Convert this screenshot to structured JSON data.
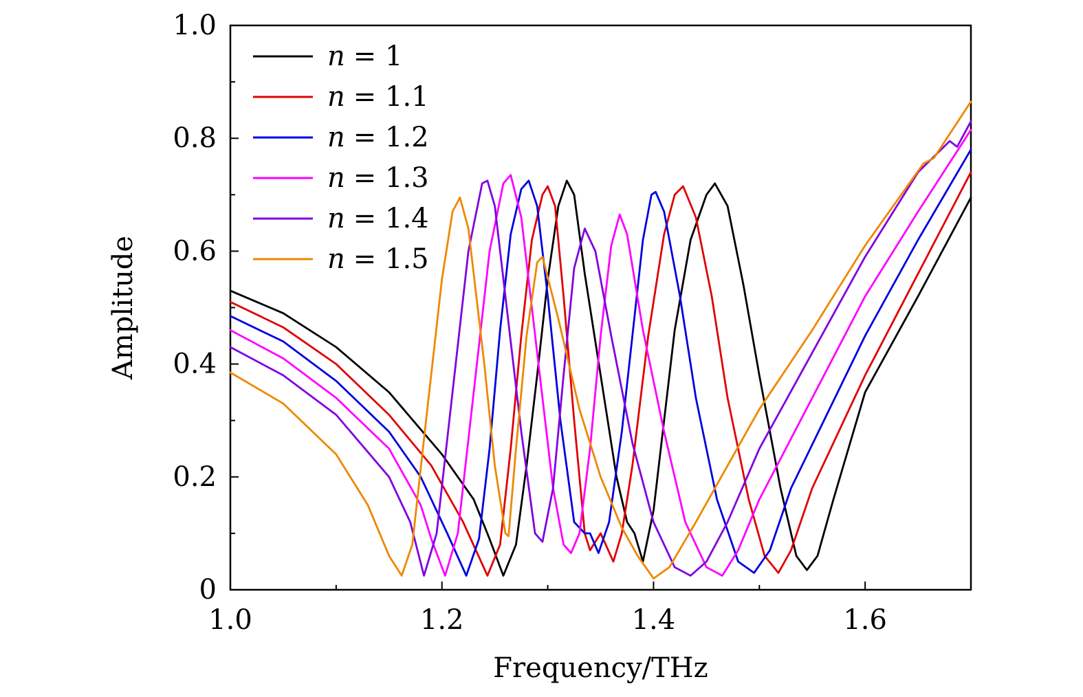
{
  "chart_data": {
    "type": "line",
    "title": "",
    "xlabel": "Frequency/THz",
    "ylabel": "Amplitude",
    "xlim": [
      1.0,
      1.7
    ],
    "ylim": [
      0,
      1.0
    ],
    "x_ticks": [
      {
        "value": 1.0,
        "label": "1.0"
      },
      {
        "value": 1.2,
        "label": "1.2"
      },
      {
        "value": 1.4,
        "label": "1.4"
      },
      {
        "value": 1.6,
        "label": "1.6"
      }
    ],
    "y_ticks": [
      {
        "value": 0,
        "label": "0"
      },
      {
        "value": 0.2,
        "label": "0.2"
      },
      {
        "value": 0.4,
        "label": "0.4"
      },
      {
        "value": 0.6,
        "label": "0.6"
      },
      {
        "value": 0.8,
        "label": "0.8"
      },
      {
        "value": 1.0,
        "label": "1.0"
      }
    ],
    "grid": false,
    "legend_position": "top-left",
    "series": [
      {
        "name": "n = 1",
        "legend_var": "n",
        "legend_value": "= 1",
        "color": "#000000",
        "points": [
          [
            1.0,
            0.53
          ],
          [
            1.05,
            0.49
          ],
          [
            1.1,
            0.43
          ],
          [
            1.15,
            0.35
          ],
          [
            1.2,
            0.24
          ],
          [
            1.23,
            0.16
          ],
          [
            1.245,
            0.09
          ],
          [
            1.258,
            0.025
          ],
          [
            1.27,
            0.08
          ],
          [
            1.28,
            0.22
          ],
          [
            1.29,
            0.38
          ],
          [
            1.3,
            0.55
          ],
          [
            1.31,
            0.68
          ],
          [
            1.318,
            0.725
          ],
          [
            1.325,
            0.7
          ],
          [
            1.335,
            0.56
          ],
          [
            1.35,
            0.38
          ],
          [
            1.365,
            0.2
          ],
          [
            1.375,
            0.12
          ],
          [
            1.382,
            0.1
          ],
          [
            1.39,
            0.05
          ],
          [
            1.4,
            0.14
          ],
          [
            1.41,
            0.3
          ],
          [
            1.42,
            0.46
          ],
          [
            1.435,
            0.62
          ],
          [
            1.45,
            0.7
          ],
          [
            1.458,
            0.72
          ],
          [
            1.47,
            0.68
          ],
          [
            1.485,
            0.54
          ],
          [
            1.5,
            0.38
          ],
          [
            1.52,
            0.18
          ],
          [
            1.535,
            0.06
          ],
          [
            1.545,
            0.035
          ],
          [
            1.555,
            0.06
          ],
          [
            1.57,
            0.16
          ],
          [
            1.6,
            0.35
          ],
          [
            1.65,
            0.52
          ],
          [
            1.7,
            0.695
          ]
        ]
      },
      {
        "name": "n = 1.1",
        "legend_var": "n",
        "legend_value": "= 1.1",
        "color": "#e00000",
        "points": [
          [
            1.0,
            0.51
          ],
          [
            1.05,
            0.465
          ],
          [
            1.1,
            0.4
          ],
          [
            1.15,
            0.31
          ],
          [
            1.19,
            0.22
          ],
          [
            1.22,
            0.12
          ],
          [
            1.243,
            0.025
          ],
          [
            1.255,
            0.08
          ],
          [
            1.265,
            0.25
          ],
          [
            1.275,
            0.45
          ],
          [
            1.285,
            0.62
          ],
          [
            1.295,
            0.7
          ],
          [
            1.3,
            0.715
          ],
          [
            1.307,
            0.68
          ],
          [
            1.315,
            0.52
          ],
          [
            1.325,
            0.3
          ],
          [
            1.335,
            0.1
          ],
          [
            1.34,
            0.07
          ],
          [
            1.35,
            0.1
          ],
          [
            1.362,
            0.05
          ],
          [
            1.37,
            0.1
          ],
          [
            1.38,
            0.22
          ],
          [
            1.395,
            0.45
          ],
          [
            1.41,
            0.63
          ],
          [
            1.42,
            0.7
          ],
          [
            1.428,
            0.715
          ],
          [
            1.44,
            0.66
          ],
          [
            1.455,
            0.52
          ],
          [
            1.47,
            0.34
          ],
          [
            1.49,
            0.16
          ],
          [
            1.505,
            0.06
          ],
          [
            1.518,
            0.03
          ],
          [
            1.53,
            0.07
          ],
          [
            1.55,
            0.18
          ],
          [
            1.6,
            0.38
          ],
          [
            1.65,
            0.56
          ],
          [
            1.7,
            0.74
          ]
        ]
      },
      {
        "name": "n = 1.2",
        "legend_var": "n",
        "legend_value": "= 1.2",
        "color": "#0000e0",
        "points": [
          [
            1.0,
            0.485
          ],
          [
            1.05,
            0.44
          ],
          [
            1.1,
            0.37
          ],
          [
            1.15,
            0.28
          ],
          [
            1.18,
            0.2
          ],
          [
            1.205,
            0.1
          ],
          [
            1.223,
            0.025
          ],
          [
            1.235,
            0.09
          ],
          [
            1.245,
            0.25
          ],
          [
            1.255,
            0.46
          ],
          [
            1.265,
            0.63
          ],
          [
            1.275,
            0.71
          ],
          [
            1.282,
            0.725
          ],
          [
            1.29,
            0.68
          ],
          [
            1.3,
            0.52
          ],
          [
            1.312,
            0.3
          ],
          [
            1.325,
            0.12
          ],
          [
            1.335,
            0.1
          ],
          [
            1.34,
            0.1
          ],
          [
            1.348,
            0.065
          ],
          [
            1.358,
            0.12
          ],
          [
            1.37,
            0.28
          ],
          [
            1.38,
            0.45
          ],
          [
            1.39,
            0.62
          ],
          [
            1.398,
            0.7
          ],
          [
            1.402,
            0.705
          ],
          [
            1.41,
            0.67
          ],
          [
            1.425,
            0.52
          ],
          [
            1.44,
            0.34
          ],
          [
            1.46,
            0.16
          ],
          [
            1.48,
            0.05
          ],
          [
            1.495,
            0.03
          ],
          [
            1.51,
            0.07
          ],
          [
            1.53,
            0.18
          ],
          [
            1.6,
            0.45
          ],
          [
            1.65,
            0.62
          ],
          [
            1.7,
            0.78
          ]
        ]
      },
      {
        "name": "n = 1.3",
        "legend_var": "n",
        "legend_value": "= 1.3",
        "color": "#ff00ff",
        "points": [
          [
            1.0,
            0.46
          ],
          [
            1.05,
            0.41
          ],
          [
            1.1,
            0.34
          ],
          [
            1.15,
            0.25
          ],
          [
            1.18,
            0.15
          ],
          [
            1.19,
            0.09
          ],
          [
            1.203,
            0.025
          ],
          [
            1.215,
            0.1
          ],
          [
            1.23,
            0.35
          ],
          [
            1.245,
            0.6
          ],
          [
            1.258,
            0.72
          ],
          [
            1.265,
            0.735
          ],
          [
            1.275,
            0.66
          ],
          [
            1.29,
            0.42
          ],
          [
            1.305,
            0.18
          ],
          [
            1.315,
            0.08
          ],
          [
            1.322,
            0.065
          ],
          [
            1.33,
            0.1
          ],
          [
            1.34,
            0.25
          ],
          [
            1.35,
            0.45
          ],
          [
            1.36,
            0.61
          ],
          [
            1.368,
            0.665
          ],
          [
            1.375,
            0.63
          ],
          [
            1.39,
            0.46
          ],
          [
            1.41,
            0.28
          ],
          [
            1.43,
            0.12
          ],
          [
            1.45,
            0.04
          ],
          [
            1.465,
            0.025
          ],
          [
            1.48,
            0.07
          ],
          [
            1.5,
            0.16
          ],
          [
            1.55,
            0.34
          ],
          [
            1.6,
            0.52
          ],
          [
            1.65,
            0.67
          ],
          [
            1.7,
            0.815
          ]
        ]
      },
      {
        "name": "n = 1.4",
        "legend_var": "n",
        "legend_value": "= 1.4",
        "color": "#8000e0",
        "points": [
          [
            1.0,
            0.43
          ],
          [
            1.05,
            0.38
          ],
          [
            1.1,
            0.31
          ],
          [
            1.15,
            0.2
          ],
          [
            1.17,
            0.12
          ],
          [
            1.183,
            0.025
          ],
          [
            1.195,
            0.1
          ],
          [
            1.21,
            0.35
          ],
          [
            1.225,
            0.6
          ],
          [
            1.238,
            0.72
          ],
          [
            1.243,
            0.725
          ],
          [
            1.25,
            0.68
          ],
          [
            1.26,
            0.52
          ],
          [
            1.275,
            0.28
          ],
          [
            1.288,
            0.1
          ],
          [
            1.295,
            0.085
          ],
          [
            1.305,
            0.18
          ],
          [
            1.315,
            0.38
          ],
          [
            1.325,
            0.57
          ],
          [
            1.335,
            0.64
          ],
          [
            1.345,
            0.6
          ],
          [
            1.36,
            0.45
          ],
          [
            1.38,
            0.26
          ],
          [
            1.4,
            0.12
          ],
          [
            1.42,
            0.04
          ],
          [
            1.435,
            0.025
          ],
          [
            1.45,
            0.05
          ],
          [
            1.47,
            0.12
          ],
          [
            1.5,
            0.25
          ],
          [
            1.55,
            0.42
          ],
          [
            1.6,
            0.59
          ],
          [
            1.65,
            0.74
          ],
          [
            1.68,
            0.795
          ],
          [
            1.687,
            0.785
          ],
          [
            1.7,
            0.83
          ]
        ]
      },
      {
        "name": "n = 1.5",
        "legend_var": "n",
        "legend_value": "= 1.5",
        "color": "#ee8800",
        "points": [
          [
            1.0,
            0.385
          ],
          [
            1.05,
            0.33
          ],
          [
            1.1,
            0.24
          ],
          [
            1.13,
            0.15
          ],
          [
            1.15,
            0.06
          ],
          [
            1.162,
            0.025
          ],
          [
            1.172,
            0.08
          ],
          [
            1.185,
            0.3
          ],
          [
            1.2,
            0.55
          ],
          [
            1.21,
            0.67
          ],
          [
            1.217,
            0.695
          ],
          [
            1.225,
            0.64
          ],
          [
            1.24,
            0.4
          ],
          [
            1.25,
            0.22
          ],
          [
            1.26,
            0.1
          ],
          [
            1.263,
            0.095
          ],
          [
            1.27,
            0.25
          ],
          [
            1.28,
            0.45
          ],
          [
            1.29,
            0.58
          ],
          [
            1.295,
            0.59
          ],
          [
            1.31,
            0.48
          ],
          [
            1.33,
            0.32
          ],
          [
            1.35,
            0.2
          ],
          [
            1.37,
            0.11
          ],
          [
            1.385,
            0.06
          ],
          [
            1.4,
            0.02
          ],
          [
            1.415,
            0.04
          ],
          [
            1.44,
            0.12
          ],
          [
            1.47,
            0.22
          ],
          [
            1.5,
            0.32
          ],
          [
            1.55,
            0.46
          ],
          [
            1.6,
            0.61
          ],
          [
            1.655,
            0.755
          ],
          [
            1.665,
            0.765
          ],
          [
            1.7,
            0.865
          ]
        ]
      }
    ]
  }
}
